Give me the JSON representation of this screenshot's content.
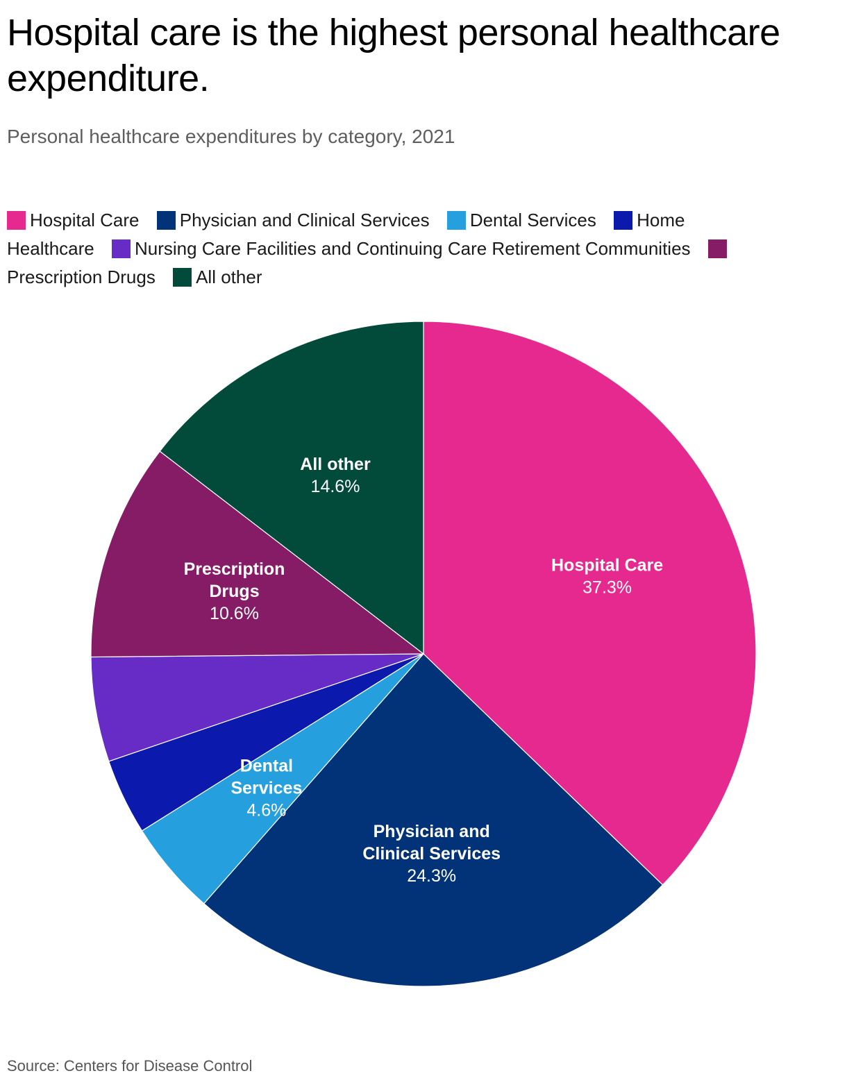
{
  "title": "Hospital care is the highest personal healthcare expenditure.",
  "subtitle": "Personal healthcare expenditures by category, 2021",
  "source": "Source: Centers for Disease Control",
  "legend": [
    {
      "label": "Hospital Care",
      "color": "#e6298f"
    },
    {
      "label": "Physician and Clinical Services",
      "color": "#023378"
    },
    {
      "label": "Dental Services",
      "color": "#259fdd"
    },
    {
      "label": "Home Healthcare",
      "color": "#0b19ac"
    },
    {
      "label": "Nursing Care Facilities and Continuing Care Retirement Communities",
      "color": "#672bc6"
    },
    {
      "label": "Prescription Drugs",
      "color": "#861b66"
    },
    {
      "label": "All other",
      "color": "#024b3b"
    }
  ],
  "chart_data": {
    "type": "pie",
    "start": "12 o'clock",
    "direction": "clockwise",
    "slices": [
      {
        "name": "Hospital Care",
        "value": 37.3,
        "label_lines": [
          "Hospital Care"
        ],
        "value_label": "37.3%",
        "color": "#e6298f"
      },
      {
        "name": "Physician and Clinical Services",
        "value": 24.3,
        "label_lines": [
          "Physician and",
          "Clinical Services"
        ],
        "value_label": "24.3%",
        "color": "#023378"
      },
      {
        "name": "Dental Services",
        "value": 4.6,
        "label_lines": [
          "Dental",
          "Services"
        ],
        "value_label": "4.6%",
        "color": "#259fdd"
      },
      {
        "name": "Home Healthcare",
        "value": 3.7,
        "label_lines": [],
        "value_label": "",
        "color": "#0b19ac"
      },
      {
        "name": "Nursing Care Facilities and Continuing Care Retirement Communities",
        "value": 5.1,
        "label_lines": [],
        "value_label": "",
        "color": "#672bc6"
      },
      {
        "name": "Prescription Drugs",
        "value": 10.6,
        "label_lines": [
          "Prescription",
          "Drugs"
        ],
        "value_label": "10.6%",
        "color": "#861b66"
      },
      {
        "name": "All other",
        "value": 14.6,
        "label_lines": [
          "All other"
        ],
        "value_label": "14.6%",
        "color": "#024b3b"
      }
    ]
  }
}
